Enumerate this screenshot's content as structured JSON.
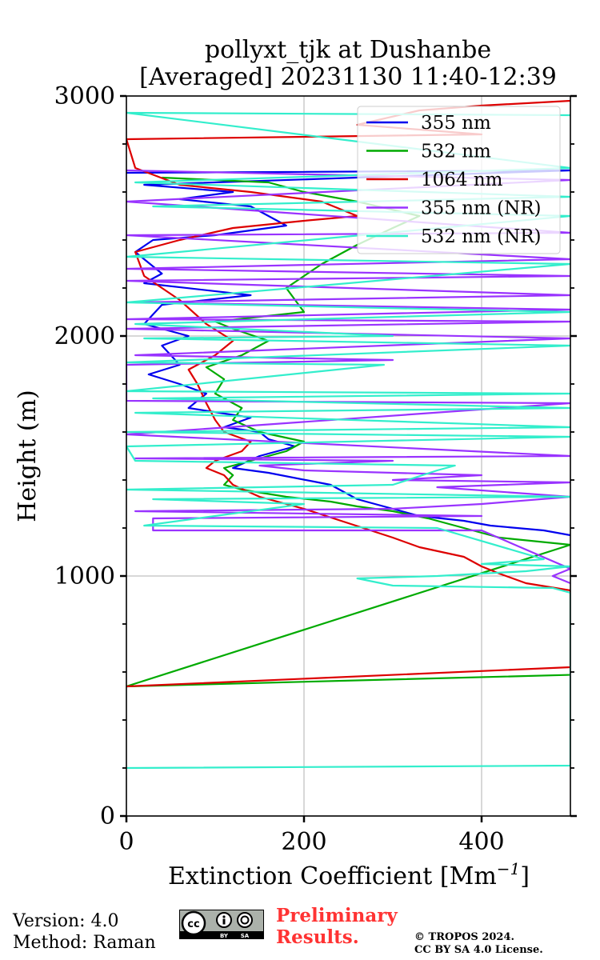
{
  "chart_data": {
    "type": "line",
    "title": [
      "pollyxt_tjk at Dushanbe",
      "[Averaged] 20231130 11:40-12:39"
    ],
    "xlabel": "Extinction Coefficient [Mm",
    "xlabel_sup": "−1",
    "xlabel_close": "]",
    "ylabel": "Height (m)",
    "xlim": [
      0,
      500
    ],
    "ylim": [
      0,
      3000
    ],
    "xticks": [
      0,
      200,
      400
    ],
    "yticks": [
      0,
      1000,
      2000,
      3000
    ],
    "grid": true,
    "legend_position": "top-right",
    "series": [
      {
        "name": "355 nm",
        "color": "#0000ee",
        "points": [
          [
            0,
            2680
          ],
          [
            500,
            2690
          ],
          [
            20,
            2630
          ],
          [
            120,
            2600
          ],
          [
            60,
            2570
          ],
          [
            140,
            2540
          ],
          [
            180,
            2460
          ],
          [
            100,
            2420
          ],
          [
            30,
            2400
          ],
          [
            10,
            2350
          ],
          [
            40,
            2260
          ],
          [
            20,
            2220
          ],
          [
            140,
            2170
          ],
          [
            40,
            2130
          ],
          [
            20,
            2050
          ],
          [
            70,
            2000
          ],
          [
            40,
            1960
          ],
          [
            60,
            1880
          ],
          [
            25,
            1840
          ],
          [
            60,
            1800
          ],
          [
            90,
            1760
          ],
          [
            70,
            1700
          ],
          [
            140,
            1660
          ],
          [
            110,
            1620
          ],
          [
            150,
            1600
          ],
          [
            160,
            1570
          ],
          [
            190,
            1540
          ],
          [
            150,
            1500
          ],
          [
            120,
            1450
          ],
          [
            160,
            1430
          ],
          [
            230,
            1380
          ],
          [
            260,
            1320
          ],
          [
            300,
            1280
          ],
          [
            330,
            1250
          ],
          [
            380,
            1230
          ],
          [
            410,
            1210
          ],
          [
            470,
            1190
          ],
          [
            500,
            1170
          ]
        ]
      },
      {
        "name": "532 nm",
        "color": "#00aa00",
        "points": [
          [
            520,
            590
          ],
          [
            0,
            540
          ],
          [
            0,
            540
          ],
          [
            500,
            1130
          ],
          [
            420,
            1160
          ],
          [
            380,
            1200
          ],
          [
            340,
            1240
          ],
          [
            300,
            1270
          ],
          [
            260,
            1290
          ],
          [
            230,
            1310
          ],
          [
            180,
            1330
          ],
          [
            130,
            1360
          ],
          [
            110,
            1380
          ],
          [
            120,
            1420
          ],
          [
            110,
            1450
          ],
          [
            140,
            1480
          ],
          [
            180,
            1520
          ],
          [
            200,
            1560
          ],
          [
            150,
            1600
          ],
          [
            120,
            1650
          ],
          [
            130,
            1700
          ],
          [
            100,
            1760
          ],
          [
            110,
            1820
          ],
          [
            90,
            1870
          ],
          [
            130,
            1920
          ],
          [
            160,
            1980
          ],
          [
            120,
            2030
          ],
          [
            100,
            2060
          ],
          [
            200,
            2100
          ],
          [
            180,
            2200
          ],
          [
            220,
            2300
          ],
          [
            260,
            2380
          ],
          [
            300,
            2450
          ],
          [
            330,
            2500
          ],
          [
            260,
            2560
          ],
          [
            200,
            2600
          ],
          [
            160,
            2640
          ],
          [
            40,
            2660
          ]
        ]
      },
      {
        "name": "1064 nm",
        "color": "#dd0000",
        "points": [
          [
            0,
            540
          ],
          [
            500,
            620
          ],
          [
            500,
            940
          ],
          [
            450,
            970
          ],
          [
            420,
            1010
          ],
          [
            400,
            1040
          ],
          [
            380,
            1080
          ],
          [
            330,
            1120
          ],
          [
            300,
            1160
          ],
          [
            250,
            1220
          ],
          [
            200,
            1280
          ],
          [
            150,
            1330
          ],
          [
            120,
            1380
          ],
          [
            110,
            1420
          ],
          [
            90,
            1450
          ],
          [
            100,
            1480
          ],
          [
            130,
            1520
          ],
          [
            140,
            1560
          ],
          [
            110,
            1600
          ],
          [
            100,
            1650
          ],
          [
            90,
            1720
          ],
          [
            80,
            1800
          ],
          [
            70,
            1860
          ],
          [
            100,
            1920
          ],
          [
            120,
            1980
          ],
          [
            90,
            2050
          ],
          [
            60,
            2150
          ],
          [
            20,
            2250
          ],
          [
            10,
            2350
          ],
          [
            60,
            2400
          ],
          [
            120,
            2450
          ],
          [
            200,
            2480
          ],
          [
            260,
            2500
          ],
          [
            220,
            2560
          ],
          [
            140,
            2600
          ],
          [
            60,
            2630
          ],
          [
            10,
            2700
          ],
          [
            0,
            2820
          ],
          [
            400,
            2840
          ],
          [
            260,
            2880
          ],
          [
            330,
            2940
          ],
          [
            400,
            2960
          ],
          [
            500,
            2980
          ]
        ]
      },
      {
        "name": "355 nm (NR)",
        "color": "#9933ff",
        "points": [
          [
            500,
            970
          ],
          [
            480,
            1000
          ],
          [
            500,
            1030
          ],
          [
            400,
            1190
          ],
          [
            30,
            1190
          ],
          [
            30,
            1240
          ],
          [
            400,
            1250
          ],
          [
            10,
            1270
          ],
          [
            300,
            1280
          ],
          [
            400,
            1300
          ],
          [
            500,
            1330
          ],
          [
            350,
            1370
          ],
          [
            500,
            1390
          ],
          [
            300,
            1400
          ],
          [
            400,
            1420
          ],
          [
            200,
            1440
          ],
          [
            150,
            1460
          ],
          [
            300,
            1480
          ],
          [
            10,
            1490
          ],
          [
            500,
            1500
          ],
          [
            0,
            1590
          ],
          [
            500,
            1720
          ],
          [
            0,
            1730
          ],
          [
            0,
            1880
          ],
          [
            300,
            1900
          ],
          [
            10,
            1920
          ],
          [
            500,
            1990
          ],
          [
            0,
            2030
          ],
          [
            500,
            2060
          ],
          [
            0,
            2070
          ],
          [
            500,
            2110
          ],
          [
            10,
            2140
          ],
          [
            500,
            2170
          ],
          [
            0,
            2230
          ],
          [
            500,
            2250
          ],
          [
            0,
            2280
          ],
          [
            500,
            2320
          ],
          [
            0,
            2420
          ],
          [
            500,
            2430
          ],
          [
            0,
            2560
          ],
          [
            500,
            2650
          ],
          [
            0,
            2690
          ]
        ]
      },
      {
        "name": "532 nm (NR)",
        "color": "#33eecc",
        "points": [
          [
            0,
            200
          ],
          [
            500,
            210
          ],
          [
            500,
            930
          ],
          [
            480,
            950
          ],
          [
            300,
            960
          ],
          [
            260,
            990
          ],
          [
            350,
            1000
          ],
          [
            450,
            1020
          ],
          [
            500,
            1040
          ],
          [
            400,
            1050
          ],
          [
            470,
            1070
          ],
          [
            350,
            1200
          ],
          [
            20,
            1210
          ],
          [
            200,
            1300
          ],
          [
            30,
            1320
          ],
          [
            500,
            1330
          ],
          [
            0,
            1360
          ],
          [
            300,
            1380
          ],
          [
            350,
            1440
          ],
          [
            370,
            1460
          ],
          [
            10,
            1480
          ],
          [
            0,
            1540
          ],
          [
            500,
            1580
          ],
          [
            0,
            1600
          ],
          [
            500,
            1620
          ],
          [
            10,
            1680
          ],
          [
            500,
            1700
          ],
          [
            30,
            1740
          ],
          [
            500,
            1760
          ],
          [
            0,
            1770
          ],
          [
            290,
            1880
          ],
          [
            0,
            1890
          ],
          [
            500,
            1960
          ],
          [
            20,
            1990
          ],
          [
            300,
            2000
          ],
          [
            10,
            2050
          ],
          [
            500,
            2100
          ],
          [
            0,
            2140
          ],
          [
            500,
            2300
          ],
          [
            0,
            2330
          ],
          [
            500,
            2500
          ],
          [
            30,
            2540
          ],
          [
            500,
            2580
          ],
          [
            10,
            2640
          ],
          [
            500,
            2700
          ],
          [
            0,
            2930
          ],
          [
            500,
            2920
          ]
        ]
      }
    ]
  },
  "footer": {
    "version": "Version: 4.0",
    "method": "Method: Raman",
    "preliminary_line1": "Preliminary",
    "preliminary_line2": "Results.",
    "copyright_line1": "© TROPOS 2024.",
    "copyright_line2": "CC BY SA 4.0 License.",
    "license_badge": "cc-by-sa-icon"
  }
}
